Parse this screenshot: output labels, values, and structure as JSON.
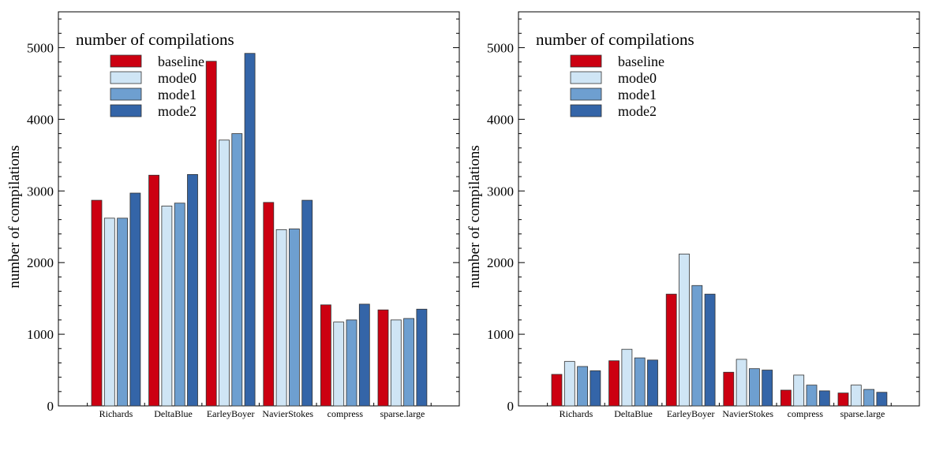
{
  "chart_data": [
    {
      "type": "bar",
      "title": "number of compilations",
      "xlabel": "",
      "ylabel": "number of compilations",
      "ylim": [
        0,
        5500
      ],
      "yticks": [
        0,
        1000,
        2000,
        3000,
        4000,
        5000
      ],
      "grid": false,
      "legend_position": "top-left",
      "categories": [
        "Richards",
        "DeltaBlue",
        "EarleyBoyer",
        "NavierStokes",
        "compress",
        "sparse.large"
      ],
      "series": [
        {
          "name": "baseline",
          "color": "#cc0011",
          "values": [
            2870,
            3220,
            4810,
            2840,
            1410,
            1340
          ]
        },
        {
          "name": "mode0",
          "color": "#cfe5f5",
          "values": [
            2620,
            2790,
            3710,
            2460,
            1170,
            1200
          ]
        },
        {
          "name": "mode1",
          "color": "#6e9fd0",
          "values": [
            2620,
            2830,
            3800,
            2470,
            1200,
            1220
          ]
        },
        {
          "name": "mode2",
          "color": "#3465a8",
          "values": [
            2970,
            3230,
            4920,
            2870,
            1420,
            1350
          ]
        }
      ]
    },
    {
      "type": "bar",
      "title": "number of compilations",
      "xlabel": "",
      "ylabel": "number of compilations",
      "ylim": [
        0,
        5500
      ],
      "yticks": [
        0,
        1000,
        2000,
        3000,
        4000,
        5000
      ],
      "grid": false,
      "legend_position": "top-left",
      "categories": [
        "Richards",
        "DeltaBlue",
        "EarleyBoyer",
        "NavierStokes",
        "compress",
        "sparse.large"
      ],
      "series": [
        {
          "name": "baseline",
          "color": "#cc0011",
          "values": [
            440,
            630,
            1560,
            470,
            220,
            180
          ]
        },
        {
          "name": "mode0",
          "color": "#cfe5f5",
          "values": [
            620,
            790,
            2120,
            650,
            430,
            290
          ]
        },
        {
          "name": "mode1",
          "color": "#6e9fd0",
          "values": [
            550,
            670,
            1680,
            520,
            290,
            230
          ]
        },
        {
          "name": "mode2",
          "color": "#3465a8",
          "values": [
            490,
            640,
            1560,
            500,
            210,
            190
          ]
        }
      ]
    }
  ]
}
